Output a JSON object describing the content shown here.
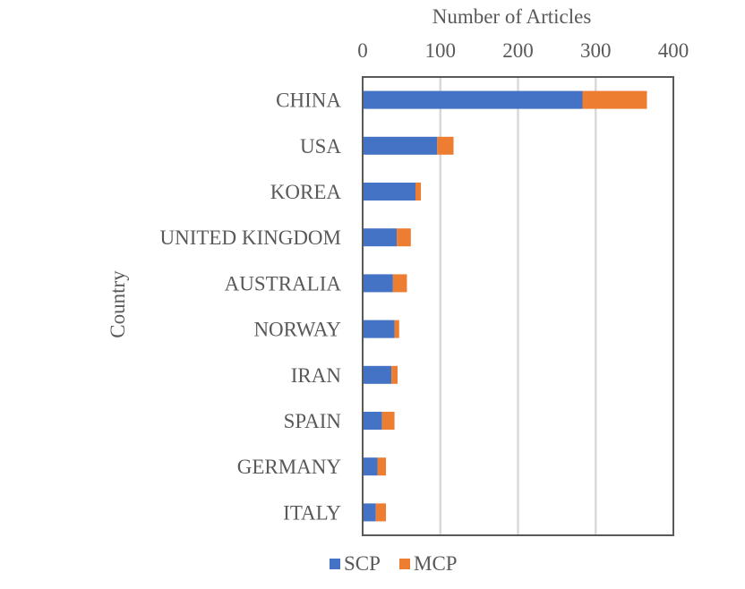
{
  "chart_data": {
    "type": "bar",
    "orientation": "horizontal",
    "stacked": true,
    "xlabel": "Number of Articles",
    "ylabel": "Country",
    "xlim": [
      0,
      400
    ],
    "xticks": [
      0,
      100,
      200,
      300,
      400
    ],
    "x_axis_position": "top",
    "grid": true,
    "legend_position": "bottom",
    "categories": [
      "CHINA",
      "USA",
      "KOREA",
      "UNITED KINGDOM",
      "AUSTRALIA",
      "NORWAY",
      "IRAN",
      "SPAIN",
      "GERMANY",
      "ITALY"
    ],
    "series": [
      {
        "name": "SCP",
        "color": "#4472C4",
        "values": [
          283,
          96,
          68,
          44,
          39,
          41,
          37,
          25,
          19,
          17
        ]
      },
      {
        "name": "MCP",
        "color": "#ED7D31",
        "values": [
          83,
          21,
          7,
          18,
          18,
          6,
          8,
          16,
          11,
          13
        ]
      }
    ]
  }
}
